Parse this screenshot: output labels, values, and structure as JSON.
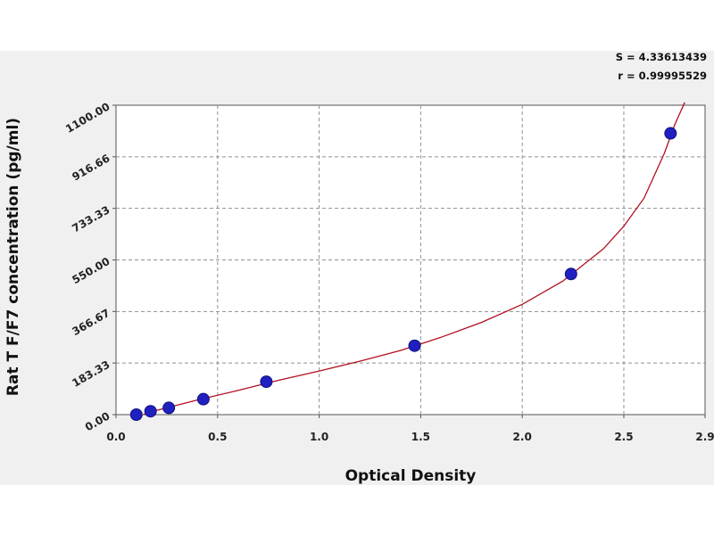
{
  "chart_data": {
    "type": "scatter",
    "xlabel": "Optical Density",
    "ylabel": "Rat T F/F7 concentration (pg/ml)",
    "xlim": [
      0,
      2.9
    ],
    "ylim": [
      0,
      1100
    ],
    "x_ticks": [
      0.0,
      0.5,
      1.0,
      1.5,
      2.0,
      2.5,
      2.9
    ],
    "x_tick_labels": [
      "0.0",
      "0.5",
      "1.0",
      "1.5",
      "2.0",
      "2.5",
      "2.9"
    ],
    "y_ticks": [
      0,
      183.33,
      366.67,
      550,
      733.33,
      916.66,
      1100
    ],
    "y_tick_labels": [
      "0.00",
      "183.33",
      "366.67",
      "550.00",
      "733.33",
      "916.66",
      "1100.00"
    ],
    "grid": true,
    "points": {
      "x": [
        0.1,
        0.17,
        0.26,
        0.43,
        0.74,
        1.47,
        2.24,
        2.73
      ],
      "y": [
        0,
        12,
        24,
        55,
        117,
        245,
        500,
        1000
      ]
    },
    "fit_curve": {
      "x": [
        0.0,
        0.2,
        0.4,
        0.6,
        0.8,
        1.0,
        1.2,
        1.4,
        1.6,
        1.8,
        2.0,
        2.2,
        2.4,
        2.5,
        2.6,
        2.7,
        2.75,
        2.8
      ],
      "y": [
        -30,
        15,
        52,
        86,
        122,
        155,
        190,
        228,
        275,
        328,
        392,
        475,
        590,
        670,
        770,
        930,
        1030,
        1110
      ]
    },
    "stats": {
      "s": "S = 4.33613439",
      "r": "r = 0.99995529"
    },
    "colors": {
      "point": "#2020c0",
      "curve": "#b01020",
      "grid": "#909090"
    }
  }
}
